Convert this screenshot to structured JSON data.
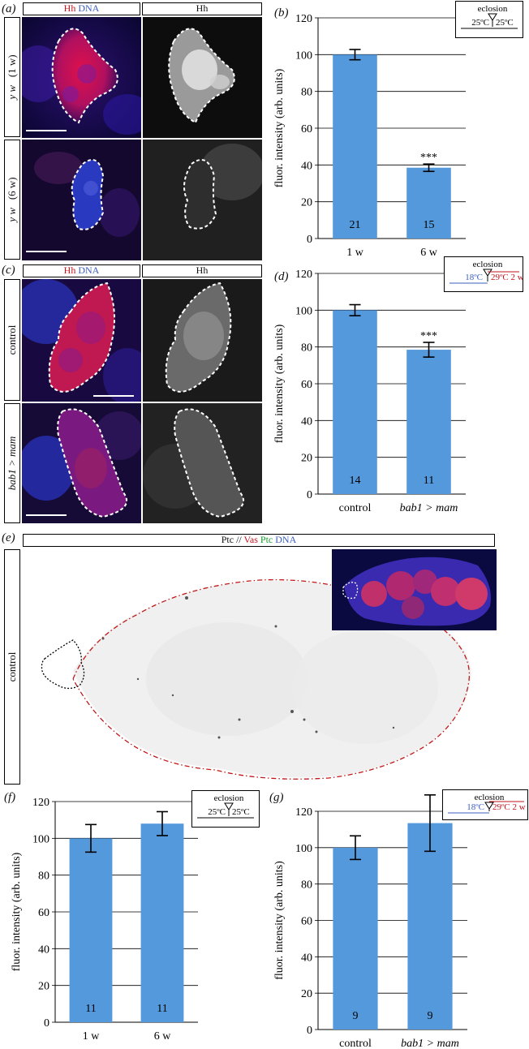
{
  "panels": {
    "a": {
      "letter": "(a)",
      "header_left": [
        {
          "text": "Hh",
          "color": "red"
        },
        {
          "text": " "
        },
        {
          "text": "DNA",
          "color": "blue"
        }
      ],
      "header_right": "Hh",
      "row1_genotype": "y w",
      "row1_age": "(1 w)",
      "row2_genotype": "y w",
      "row2_age": "(6 w)"
    },
    "c": {
      "letter": "(c)",
      "header_left": [
        {
          "text": "Hh",
          "color": "red"
        },
        {
          "text": " "
        },
        {
          "text": "DNA",
          "color": "blue"
        }
      ],
      "header_right": "Hh",
      "row1_label": "control",
      "row2_label": "bab1 > mam"
    },
    "e": {
      "letter": "(e)",
      "header": [
        {
          "text": "Ptc // "
        },
        {
          "text": "Vas",
          "color": "red"
        },
        {
          "text": " "
        },
        {
          "text": "Ptc",
          "color": "green"
        },
        {
          "text": " "
        },
        {
          "text": "DNA",
          "color": "blue"
        }
      ],
      "side_label": "control"
    }
  },
  "legends": {
    "temp_shift_25": {
      "title": "eclosion",
      "left": "25ºC",
      "right": "25ºC"
    },
    "temp_shift_18_29": {
      "title": "eclosion",
      "left": "18ºC",
      "right": "29ºC  2 w"
    }
  },
  "chart_data": [
    {
      "id": "b",
      "letter": "(b)",
      "type": "bar",
      "categories": [
        "1 w",
        "6 w"
      ],
      "values": [
        100,
        38.5
      ],
      "errors": [
        2.8,
        2.0
      ],
      "counts": [
        "21",
        "15"
      ],
      "significance": [
        "",
        "***"
      ],
      "ylabel": "fluor. intensity (arb. units)",
      "ylim": [
        0,
        120
      ],
      "yticks": [
        0,
        20,
        40,
        60,
        80,
        100,
        120
      ],
      "grid": true,
      "legend": "temp_shift_25",
      "bar_color": "#5599dd"
    },
    {
      "id": "d",
      "letter": "(d)",
      "type": "bar",
      "categories": [
        "control",
        "bab1 > mam"
      ],
      "category_italic": [
        false,
        true
      ],
      "values": [
        100,
        78.5
      ],
      "errors": [
        3.0,
        4.0
      ],
      "counts": [
        "14",
        "11"
      ],
      "significance": [
        "",
        "***"
      ],
      "ylabel": "fluor. intensity (arb. units)",
      "ylim": [
        0,
        120
      ],
      "yticks": [
        0,
        20,
        40,
        60,
        80,
        100,
        120
      ],
      "grid": true,
      "legend": "temp_shift_18_29",
      "bar_color": "#5599dd"
    },
    {
      "id": "f",
      "letter": "(f)",
      "type": "bar",
      "categories": [
        "1 w",
        "6 w"
      ],
      "values": [
        100,
        108
      ],
      "errors": [
        7.5,
        6.5
      ],
      "counts": [
        "11",
        "11"
      ],
      "significance": [
        "",
        ""
      ],
      "ylabel": "fluor. intensity (arb. units)",
      "ylim": [
        0,
        120
      ],
      "yticks": [
        0,
        20,
        40,
        60,
        80,
        100,
        120
      ],
      "grid": true,
      "legend": "temp_shift_25",
      "bar_color": "#5599dd"
    },
    {
      "id": "g",
      "letter": "(g)",
      "type": "bar",
      "categories": [
        "control",
        "bab1 > mam"
      ],
      "category_italic": [
        false,
        true
      ],
      "values": [
        100,
        113.5
      ],
      "errors": [
        6.5,
        15.5
      ],
      "counts": [
        "9",
        "9"
      ],
      "significance": [
        "",
        ""
      ],
      "ylabel": "fluor. intensity (arb. units)",
      "ylim": [
        0,
        120
      ],
      "yticks": [
        0,
        20,
        40,
        60,
        80,
        100,
        120
      ],
      "grid": true,
      "legend": "temp_shift_18_29",
      "bar_color": "#5599dd"
    }
  ]
}
